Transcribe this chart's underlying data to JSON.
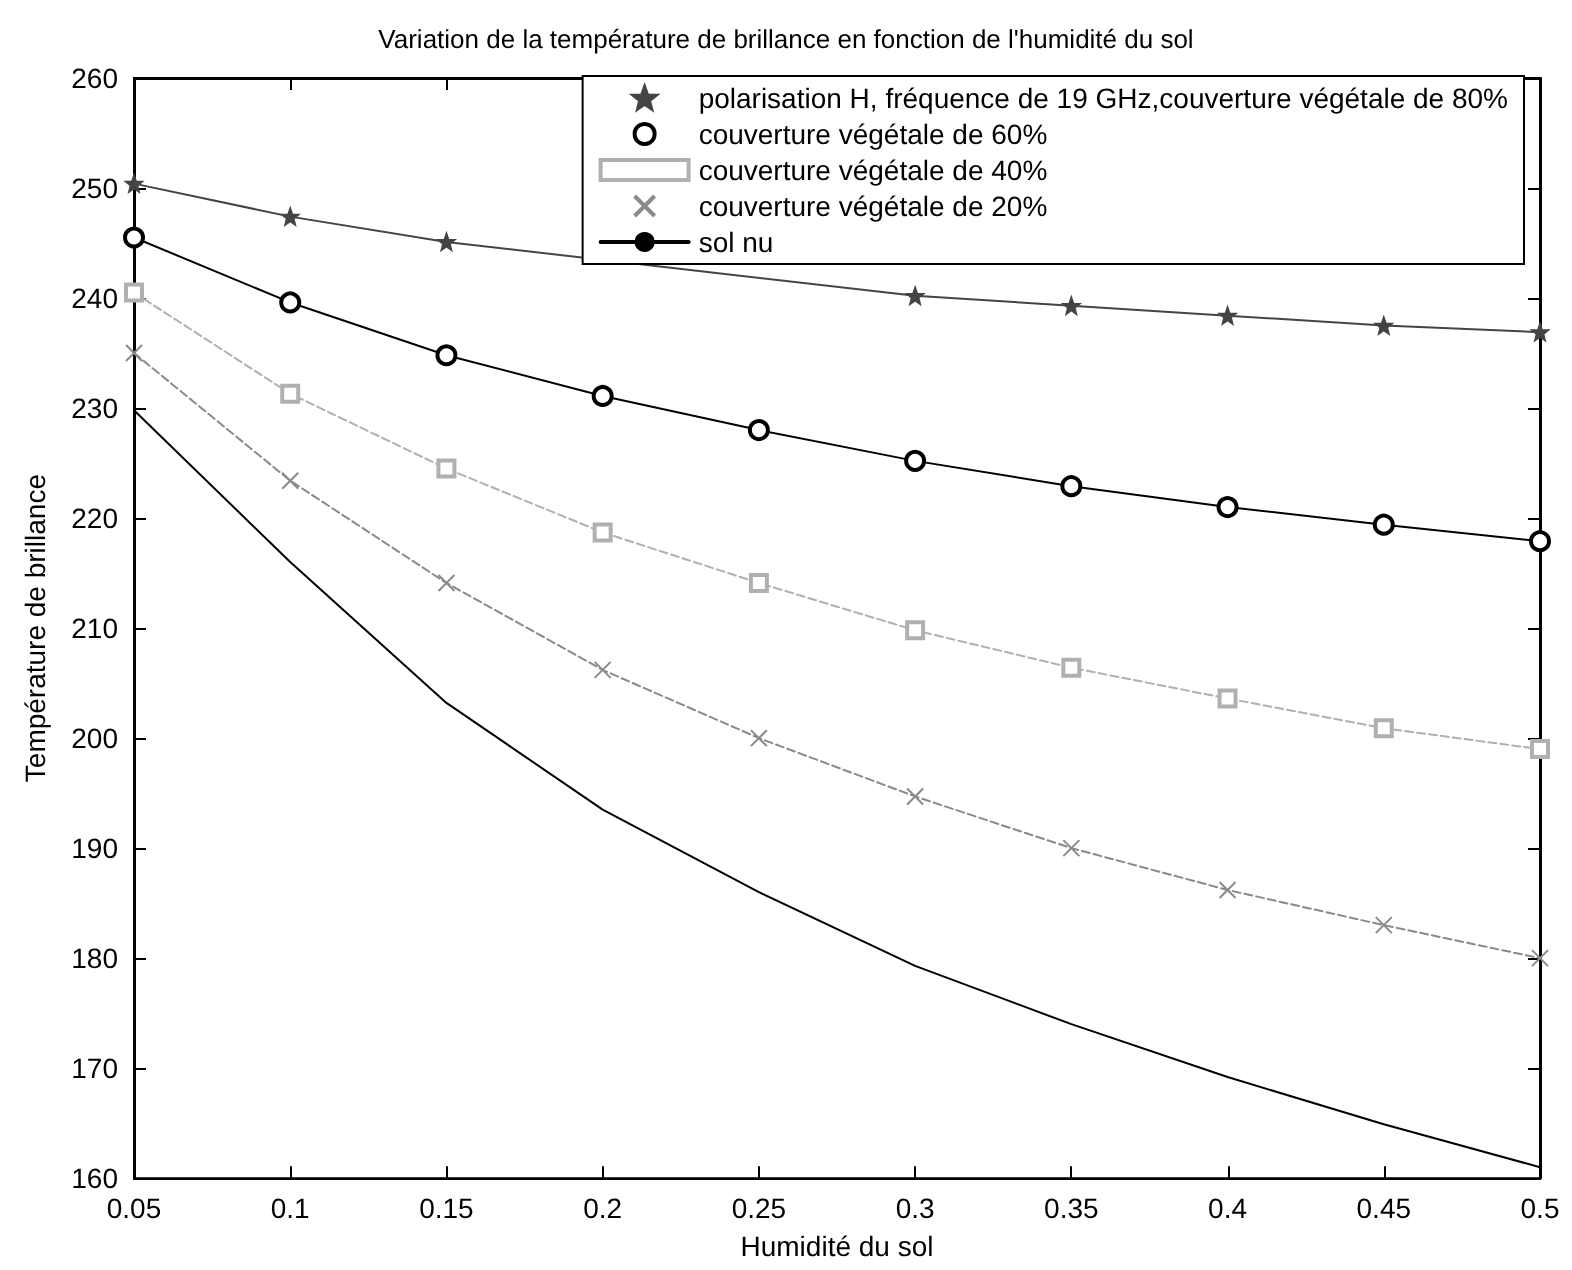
{
  "chart_data": {
    "type": "line",
    "title": "Variation de la température de brillance en fonction de l'humidité du sol",
    "xlabel": "Humidité du sol",
    "ylabel": "Température de brillance",
    "x": [
      0.05,
      0.1,
      0.15,
      0.2,
      0.25,
      0.3,
      0.35,
      0.4,
      0.45,
      0.5
    ],
    "series": [
      {
        "name": "polarisation H, fréquence de 19 GHz,couverture végétale de 80%",
        "color": "#444444",
        "marker": "star",
        "line_style": "solid",
        "values": [
          250.4,
          247.4,
          245.1,
          null,
          null,
          240.2,
          239.3,
          238.4,
          237.5,
          236.9
        ]
      },
      {
        "name": "couverture végétale de 60%",
        "color": "#000000",
        "marker": "circle",
        "line_style": "solid",
        "values": [
          245.5,
          239.6,
          234.8,
          231.1,
          228.0,
          225.2,
          222.9,
          221.0,
          219.4,
          217.9
        ]
      },
      {
        "name": "couverture végétale de 40%",
        "color": "#b0b0b0",
        "marker": "square",
        "line_style": "dashed",
        "values": [
          240.5,
          231.3,
          224.5,
          218.7,
          214.1,
          209.8,
          206.4,
          203.6,
          200.9,
          199.0
        ]
      },
      {
        "name": "couverture végétale de 20%",
        "color": "#8a8a8a",
        "marker": "cross",
        "line_style": "dashed",
        "values": [
          235.0,
          223.4,
          214.1,
          206.2,
          200.0,
          194.7,
          190.0,
          186.2,
          183.0,
          180.0
        ]
      },
      {
        "name": "sol nu",
        "color": "#000000",
        "marker": "none",
        "line_style": "solid",
        "values": [
          229.8,
          216.0,
          203.2,
          193.5,
          186.0,
          179.3,
          174.0,
          169.2,
          164.9,
          161.0
        ]
      }
    ],
    "xlim": [
      0.05,
      0.5
    ],
    "xticks": [
      0.05,
      0.1,
      0.15,
      0.2,
      0.25,
      0.3,
      0.35,
      0.4,
      0.45,
      0.5
    ],
    "ylim": [
      160,
      260
    ],
    "yticks": [
      160,
      170,
      180,
      190,
      200,
      210,
      220,
      230,
      240,
      250,
      260
    ],
    "grid": false,
    "legend": "top right"
  }
}
